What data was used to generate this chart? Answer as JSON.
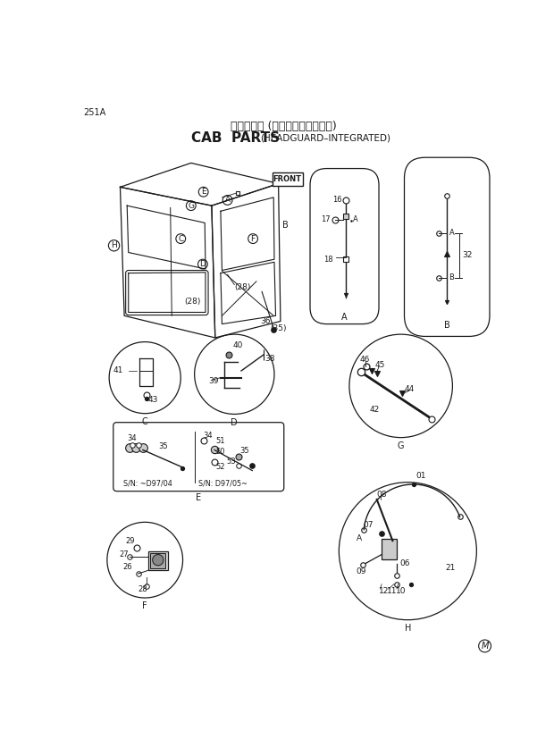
{
  "title_japanese": "キャブ部哆 (ヘッドガード一体型)",
  "title_english": "CAB  PARTS",
  "title_sub": "(HEADGUARD–INTEGRATED)",
  "page_number": "251A",
  "bg_color": "#ffffff",
  "line_color": "#1a1a1a",
  "text_color": "#1a1a1a"
}
